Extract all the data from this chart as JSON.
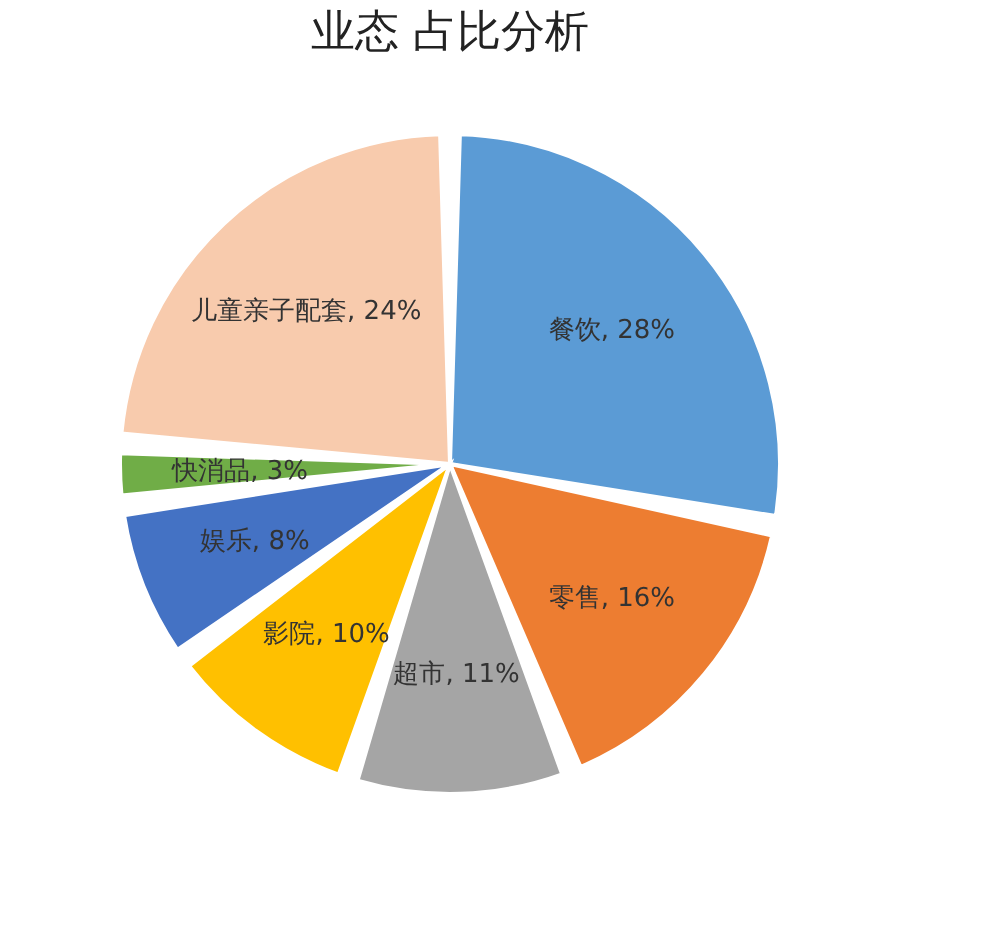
{
  "chart_data": {
    "type": "pie",
    "title": "业态 占比分析",
    "categories": [
      "餐饮",
      "零售",
      "超市",
      "影院",
      "娱乐",
      "快消品",
      "儿童亲子配套"
    ],
    "values": [
      28,
      16,
      11,
      10,
      8,
      3,
      24
    ],
    "value_labels": [
      "28%",
      "16%",
      "11%",
      "10%",
      "8%",
      "3%",
      "24%"
    ],
    "colors": [
      "#5b9bd5",
      "#ed7d31",
      "#a5a5a5",
      "#ffc000",
      "#4472c4",
      "#70ad47",
      "#f8cbad"
    ],
    "legend": false
  }
}
